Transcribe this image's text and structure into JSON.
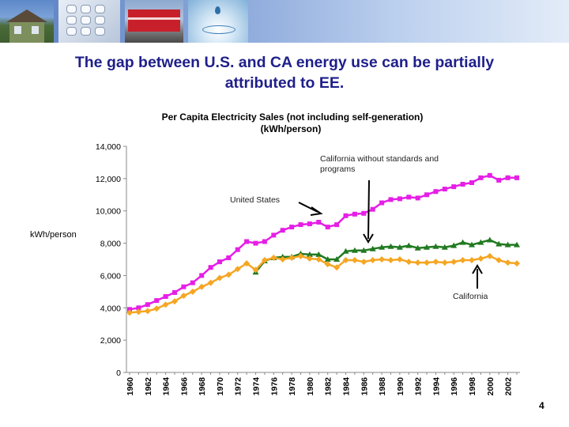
{
  "slide": {
    "title_line1": "The gap between U.S. and CA energy use can be partially",
    "title_line2": "attributed to EE.",
    "page_number": "4"
  },
  "banner": {
    "images": [
      "house-solar-photo",
      "calculator-keypad-photo",
      "red-train-photo",
      "water-drop-photo"
    ]
  },
  "colors": {
    "united_states": "#e61ee6",
    "california_without_standards": "#217a21",
    "california": "#f5a623",
    "title_text": "#1f1f8a"
  },
  "chart_data": {
    "type": "line",
    "title_line1": "Per Capita Electricity Sales (not including self-generation)",
    "title_line2": "(kWh/person)",
    "ylabel": "kWh/person",
    "xlabel": "",
    "ylim": [
      0,
      14000
    ],
    "yticks": [
      "0",
      "2,000",
      "4,000",
      "6,000",
      "8,000",
      "10,000",
      "12,000",
      "14,000"
    ],
    "ytick_values": [
      0,
      2000,
      4000,
      6000,
      8000,
      10000,
      12000,
      14000
    ],
    "grid": false,
    "x": [
      1960,
      1961,
      1962,
      1963,
      1964,
      1965,
      1966,
      1967,
      1968,
      1969,
      1970,
      1971,
      1972,
      1973,
      1974,
      1975,
      1976,
      1977,
      1978,
      1979,
      1980,
      1981,
      1982,
      1983,
      1984,
      1985,
      1986,
      1987,
      1988,
      1989,
      1990,
      1991,
      1992,
      1993,
      1994,
      1995,
      1996,
      1997,
      1998,
      1999,
      2000,
      2001,
      2002,
      2003
    ],
    "xtick_labels": [
      "1960",
      "1962",
      "1964",
      "1966",
      "1968",
      "1970",
      "1972",
      "1974",
      "1976",
      "1978",
      "1980",
      "1982",
      "1984",
      "1986",
      "1988",
      "1990",
      "1992",
      "1994",
      "1996",
      "1998",
      "2000",
      "2002"
    ],
    "series": [
      {
        "name": "United States",
        "marker": "square",
        "values": [
          3900,
          4000,
          4200,
          4450,
          4700,
          4950,
          5300,
          5550,
          6000,
          6500,
          6850,
          7100,
          7600,
          8100,
          8000,
          8100,
          8500,
          8800,
          9000,
          9150,
          9200,
          9300,
          9000,
          9150,
          9700,
          9800,
          9850,
          10100,
          10500,
          10700,
          10750,
          10850,
          10800,
          11000,
          11200,
          11350,
          11500,
          11650,
          11750,
          12050,
          12200,
          11900,
          12050,
          12050
        ]
      },
      {
        "name": "California without standards and programs",
        "marker": "triangle",
        "values": [
          null,
          null,
          null,
          null,
          null,
          null,
          null,
          null,
          null,
          null,
          null,
          null,
          null,
          null,
          6200,
          6900,
          7100,
          7150,
          7150,
          7350,
          7300,
          7300,
          7000,
          7000,
          7500,
          7550,
          7550,
          7650,
          7750,
          7800,
          7750,
          7850,
          7700,
          7750,
          7800,
          7750,
          7850,
          8050,
          7900,
          8050,
          8200,
          7950,
          7900,
          7900
        ]
      },
      {
        "name": "California",
        "marker": "diamond",
        "values": [
          3700,
          3750,
          3800,
          3950,
          4200,
          4400,
          4750,
          5000,
          5300,
          5550,
          5850,
          6050,
          6400,
          6750,
          6350,
          6950,
          7100,
          7000,
          7100,
          7200,
          7050,
          7000,
          6700,
          6500,
          6950,
          6950,
          6850,
          6950,
          7000,
          6950,
          7000,
          6850,
          6800,
          6800,
          6850,
          6800,
          6850,
          6950,
          6950,
          7050,
          7200,
          6950,
          6800,
          6750
        ]
      }
    ],
    "annotations": [
      {
        "id": "ca-without",
        "line1": "California without standards and",
        "line2": "programs"
      },
      {
        "id": "us",
        "line1": "United States"
      },
      {
        "id": "ca",
        "line1": "California"
      }
    ]
  }
}
